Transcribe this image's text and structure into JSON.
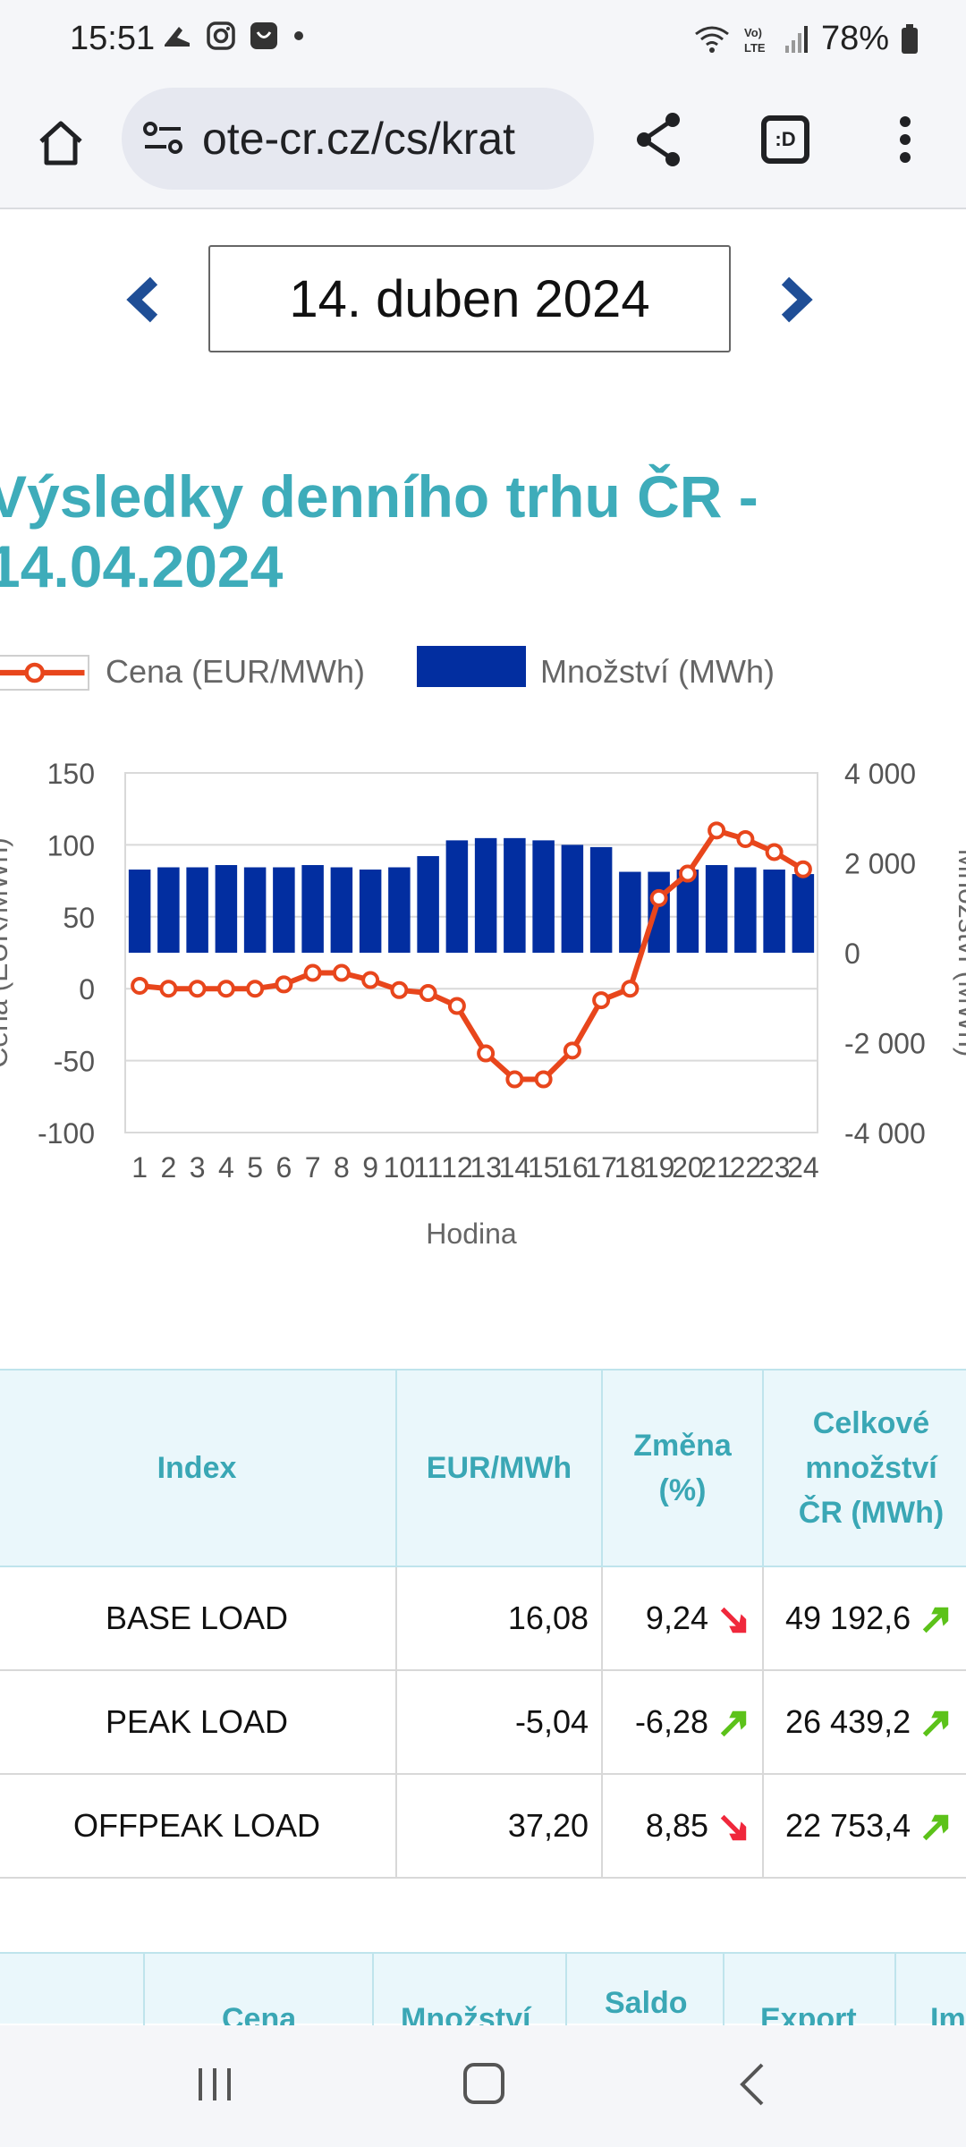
{
  "status": {
    "time": "15:51",
    "battery": "78%"
  },
  "browser": {
    "url": "ote-cr.cz/cs/krat"
  },
  "date_selector": {
    "date": "14. duben 2024"
  },
  "page": {
    "title_line1": "Výsledky denního trhu ČR -",
    "title_line2": "14.04.2024"
  },
  "legend": {
    "price": "Cena (EUR/MWh)",
    "volume": "Množství (MWh)"
  },
  "chart_data": {
    "type": "bar+line",
    "xlabel": "Hodina",
    "ylabel_left": "Cena (EUR/MWh)",
    "ylabel_right": "Množství (MWh)",
    "ylim_left": [
      -100,
      150
    ],
    "ylim_right": [
      -4000,
      4000
    ],
    "yticks_left": [
      "150",
      "100",
      "50",
      "0",
      "-50",
      "-100"
    ],
    "yticks_right": [
      "4 000",
      "2 000",
      "0",
      "-2 000",
      "-4 000"
    ],
    "categories": [
      "1",
      "2",
      "3",
      "4",
      "5",
      "6",
      "7",
      "8",
      "9",
      "10",
      "11",
      "12",
      "13",
      "14",
      "15",
      "16",
      "17",
      "18",
      "19",
      "20",
      "21",
      "22",
      "23",
      "24"
    ],
    "series": [
      {
        "name": "Množství (MWh)",
        "type": "bar",
        "axis": "right",
        "color": "#022ea0",
        "values": [
          1850,
          1900,
          1900,
          1950,
          1900,
          1900,
          1950,
          1900,
          1850,
          1900,
          2150,
          2500,
          2550,
          2550,
          2500,
          2400,
          2350,
          1800,
          1800,
          1850,
          1950,
          1900,
          1850,
          1750
        ]
      },
      {
        "name": "Cena (EUR/MWh)",
        "type": "line",
        "axis": "left",
        "color": "#e8461c",
        "values": [
          2,
          0,
          0,
          0,
          0,
          3,
          11,
          11,
          6,
          -1,
          -3,
          -12,
          -45,
          -63,
          -63,
          -43,
          -8,
          0,
          63,
          80,
          110,
          104,
          95,
          83
        ]
      }
    ],
    "grid": true,
    "legend_position": "top"
  },
  "index_table": {
    "headers": [
      "Index",
      "EUR/MWh",
      "Změna (%)",
      "Celkové množství ČR (MWh)"
    ],
    "rows": [
      {
        "name": "BASE LOAD",
        "price": "16,08",
        "change": "9,24",
        "change_dir": "down",
        "total": "49 192,6",
        "total_dir": "up"
      },
      {
        "name": "PEAK LOAD",
        "price": "-5,04",
        "change": "-6,28",
        "change_dir": "up",
        "total": "26 439,2",
        "total_dir": "up"
      },
      {
        "name": "OFFPEAK LOAD",
        "price": "37,20",
        "change": "8,85",
        "change_dir": "down",
        "total": "22 753,4",
        "total_dir": "up"
      }
    ]
  },
  "table2": {
    "headers": [
      "Cena",
      "Množství",
      "Saldo",
      "Export",
      "Im"
    ]
  },
  "colors": {
    "accent": "#3eacba",
    "bar": "#022ea0",
    "line": "#e8461c",
    "arrow_up": "#5cc21a",
    "arrow_down": "#f0283c"
  }
}
